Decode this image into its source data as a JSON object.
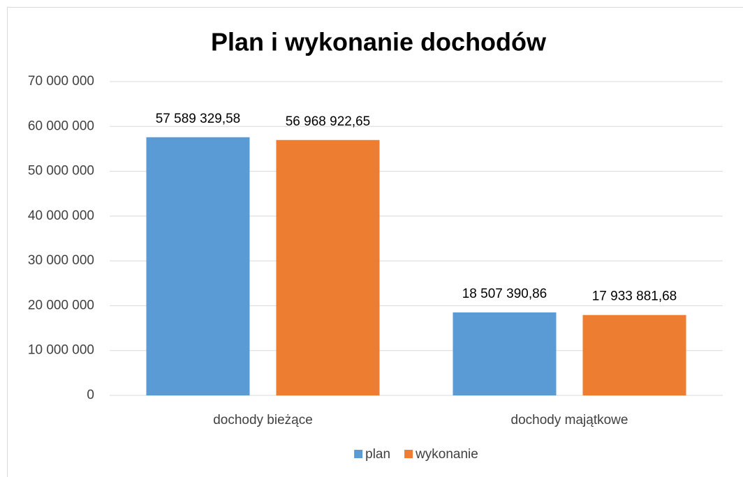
{
  "chart_data": {
    "type": "bar",
    "title": "Plan i wykonanie dochodów",
    "categories": [
      "dochody bieżące",
      "dochody majątkowe"
    ],
    "series": [
      {
        "name": "plan",
        "color": "#5b9bd5",
        "values": [
          57589329.58,
          18507390.86
        ],
        "value_labels": [
          "57 589 329,58",
          "18 507 390,86"
        ]
      },
      {
        "name": "wykonanie",
        "color": "#ed7d31",
        "values": [
          56968922.65,
          17933881.68
        ],
        "value_labels": [
          "56 968 922,65",
          "17 933 881,68"
        ]
      }
    ],
    "ylim": [
      0,
      70000000
    ],
    "yticks": [
      0,
      {
        "value": 10000000,
        "label": "10 000 000"
      },
      {
        "value": 20000000,
        "label": "20 000 000"
      },
      {
        "value": 30000000,
        "label": "30 000 000"
      },
      {
        "value": 40000000,
        "label": "40 000 000"
      },
      {
        "value": 50000000,
        "label": "50 000 000"
      },
      {
        "value": 60000000,
        "label": "60 000 000"
      },
      {
        "value": 70000000,
        "label": "70 000 000"
      }
    ],
    "grid": true,
    "legend": "bottom"
  }
}
